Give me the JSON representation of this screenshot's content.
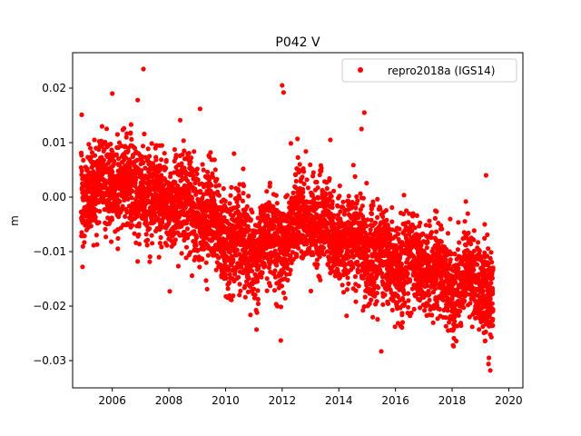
{
  "chart_data": {
    "type": "scatter",
    "title": "P042 V",
    "xlabel": "",
    "ylabel": "m",
    "xlim": [
      2004.6,
      2020.5
    ],
    "ylim": [
      -0.035,
      0.0265
    ],
    "x_ticks": [
      2006,
      2008,
      2010,
      2012,
      2014,
      2016,
      2018,
      2020
    ],
    "y_ticks": [
      -0.03,
      -0.02,
      -0.01,
      0.0,
      0.01,
      0.02
    ],
    "x_tick_labels": [
      "2006",
      "2008",
      "2010",
      "2012",
      "2014",
      "2016",
      "2018",
      "2020"
    ],
    "y_tick_labels": [
      "−0.03",
      "−0.02",
      "−0.01",
      "0.00",
      "0.01",
      "0.02"
    ],
    "grid": false,
    "legend_position": "top-right",
    "series": [
      {
        "name": "repro2018a (IGS14)",
        "color": "#ff0000",
        "marker": "circle",
        "trend_knots": {
          "x": [
            2004.9,
            2005.5,
            2006.0,
            2006.5,
            2007.0,
            2007.5,
            2008.0,
            2008.5,
            2009.0,
            2009.5,
            2010.0,
            2010.5,
            2011.0,
            2011.5,
            2012.0,
            2012.5,
            2013.0,
            2013.5,
            2014.0,
            2014.5,
            2015.0,
            2015.5,
            2016.0,
            2016.5,
            2017.0,
            2017.5,
            2018.0,
            2018.5,
            2019.0,
            2019.45
          ],
          "y": [
            0.001,
            0.001,
            0.003,
            0.002,
            0.002,
            0.0,
            -0.001,
            -0.002,
            -0.002,
            -0.004,
            -0.007,
            -0.009,
            -0.01,
            -0.009,
            -0.008,
            -0.004,
            -0.004,
            -0.006,
            -0.008,
            -0.008,
            -0.01,
            -0.011,
            -0.013,
            -0.012,
            -0.011,
            -0.015,
            -0.016,
            -0.015,
            -0.015,
            -0.018
          ]
        },
        "outliers": [
          {
            "x": 2007.1,
            "y": 0.0235
          },
          {
            "x": 2012.0,
            "y": 0.0205
          },
          {
            "x": 2012.05,
            "y": 0.0192
          },
          {
            "x": 2006.0,
            "y": 0.019
          },
          {
            "x": 2006.9,
            "y": 0.0178
          },
          {
            "x": 2009.1,
            "y": 0.0162
          },
          {
            "x": 2014.9,
            "y": 0.0155
          },
          {
            "x": 2014.8,
            "y": 0.0125
          },
          {
            "x": 2011.95,
            "y": -0.0263
          },
          {
            "x": 2019.35,
            "y": -0.0318
          },
          {
            "x": 2019.3,
            "y": -0.0295
          },
          {
            "x": 2015.5,
            "y": -0.0283
          },
          {
            "x": 2019.2,
            "y": 0.004
          },
          {
            "x": 2004.95,
            "y": -0.0128
          },
          {
            "x": 2013.7,
            "y": 0.0105
          }
        ]
      }
    ]
  }
}
